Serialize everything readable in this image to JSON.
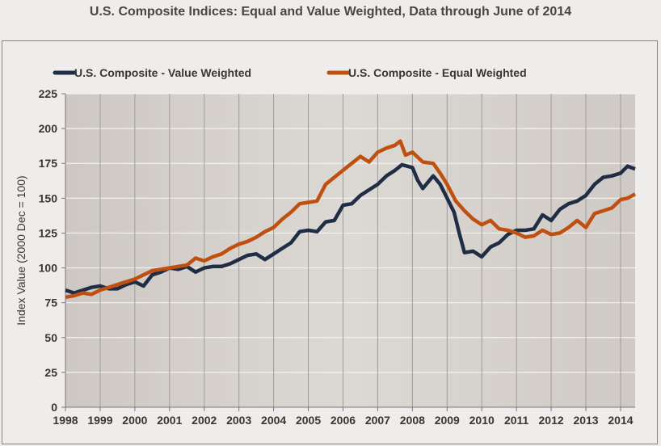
{
  "chart_data": {
    "type": "line",
    "title": "U.S. Composite Indices: Equal and Value Weighted, Data through June of 2014",
    "xlabel": "",
    "ylabel": "Index Value (2000 Dec = 100)",
    "xlim": [
      1998,
      2014.42
    ],
    "ylim": [
      0,
      225
    ],
    "yticks": [
      0,
      25,
      50,
      75,
      100,
      125,
      150,
      175,
      200,
      225
    ],
    "xticks": [
      "1998",
      "1999",
      "2000",
      "2001",
      "2002",
      "2003",
      "2004",
      "2005",
      "2006",
      "2007",
      "2008",
      "2009",
      "2010",
      "2011",
      "2012",
      "2013",
      "2014"
    ],
    "grid": true,
    "legend_placement": "top",
    "series": [
      {
        "name": "U.S. Composite - Value Weighted",
        "color": "#1f2d45",
        "x": [
          1998,
          1998.25,
          1998.5,
          1998.75,
          1999,
          1999.25,
          1999.5,
          1999.75,
          2000,
          2000.25,
          2000.5,
          2000.75,
          2001,
          2001.25,
          2001.5,
          2001.75,
          2002,
          2002.25,
          2002.5,
          2002.75,
          2003,
          2003.25,
          2003.5,
          2003.75,
          2004,
          2004.25,
          2004.5,
          2004.75,
          2005,
          2005.25,
          2005.5,
          2005.75,
          2006,
          2006.25,
          2006.5,
          2006.75,
          2007,
          2007.25,
          2007.5,
          2007.7,
          2008,
          2008.15,
          2008.3,
          2008.6,
          2008.8,
          2009,
          2009.2,
          2009.35,
          2009.5,
          2009.75,
          2010,
          2010.25,
          2010.5,
          2010.75,
          2011,
          2011.25,
          2011.5,
          2011.75,
          2012,
          2012.25,
          2012.5,
          2012.75,
          2013,
          2013.25,
          2013.5,
          2013.75,
          2014,
          2014.2,
          2014.42
        ],
        "values": [
          84,
          82,
          84,
          86,
          87,
          85,
          85,
          88,
          90,
          87,
          95,
          97,
          100,
          99,
          101,
          97,
          100,
          101,
          101,
          103,
          106,
          109,
          110,
          106,
          110,
          114,
          118,
          126,
          127,
          126,
          133,
          134,
          145,
          146,
          152,
          156,
          160,
          166,
          170,
          174,
          172,
          163,
          157,
          166,
          160,
          150,
          140,
          125,
          111,
          112,
          108,
          115,
          118,
          124,
          127,
          127,
          128,
          138,
          134,
          142,
          146,
          148,
          152,
          160,
          165,
          166,
          168,
          173,
          171
        ]
      },
      {
        "name": "U.S. Composite - Equal Weighted",
        "color": "#c0500f",
        "x": [
          1998,
          1998.25,
          1998.5,
          1998.75,
          1999,
          1999.25,
          1999.5,
          1999.75,
          2000,
          2000.25,
          2000.5,
          2000.75,
          2001,
          2001.25,
          2001.5,
          2001.75,
          2002,
          2002.25,
          2002.5,
          2002.75,
          2003,
          2003.25,
          2003.5,
          2003.75,
          2004,
          2004.25,
          2004.5,
          2004.75,
          2005,
          2005.25,
          2005.5,
          2005.75,
          2006,
          2006.25,
          2006.5,
          2006.75,
          2007,
          2007.25,
          2007.5,
          2007.65,
          2007.8,
          2008,
          2008.3,
          2008.6,
          2008.8,
          2009,
          2009.25,
          2009.5,
          2009.75,
          2010,
          2010.25,
          2010.5,
          2010.75,
          2011,
          2011.25,
          2011.5,
          2011.75,
          2012,
          2012.25,
          2012.5,
          2012.75,
          2013,
          2013.25,
          2013.5,
          2013.75,
          2014,
          2014.2,
          2014.42
        ],
        "values": [
          79,
          80,
          82,
          81,
          84,
          86,
          88,
          90,
          92,
          95,
          98,
          99,
          100,
          101,
          102,
          107,
          105,
          108,
          110,
          114,
          117,
          119,
          122,
          126,
          129,
          135,
          140,
          146,
          147,
          148,
          160,
          165,
          170,
          175,
          180,
          176,
          183,
          186,
          188,
          191,
          181,
          183,
          176,
          175,
          168,
          160,
          148,
          141,
          135,
          131,
          134,
          128,
          127,
          125,
          122,
          123,
          127,
          124,
          125,
          129,
          134,
          129,
          139,
          141,
          143,
          149,
          150,
          153
        ]
      }
    ]
  }
}
